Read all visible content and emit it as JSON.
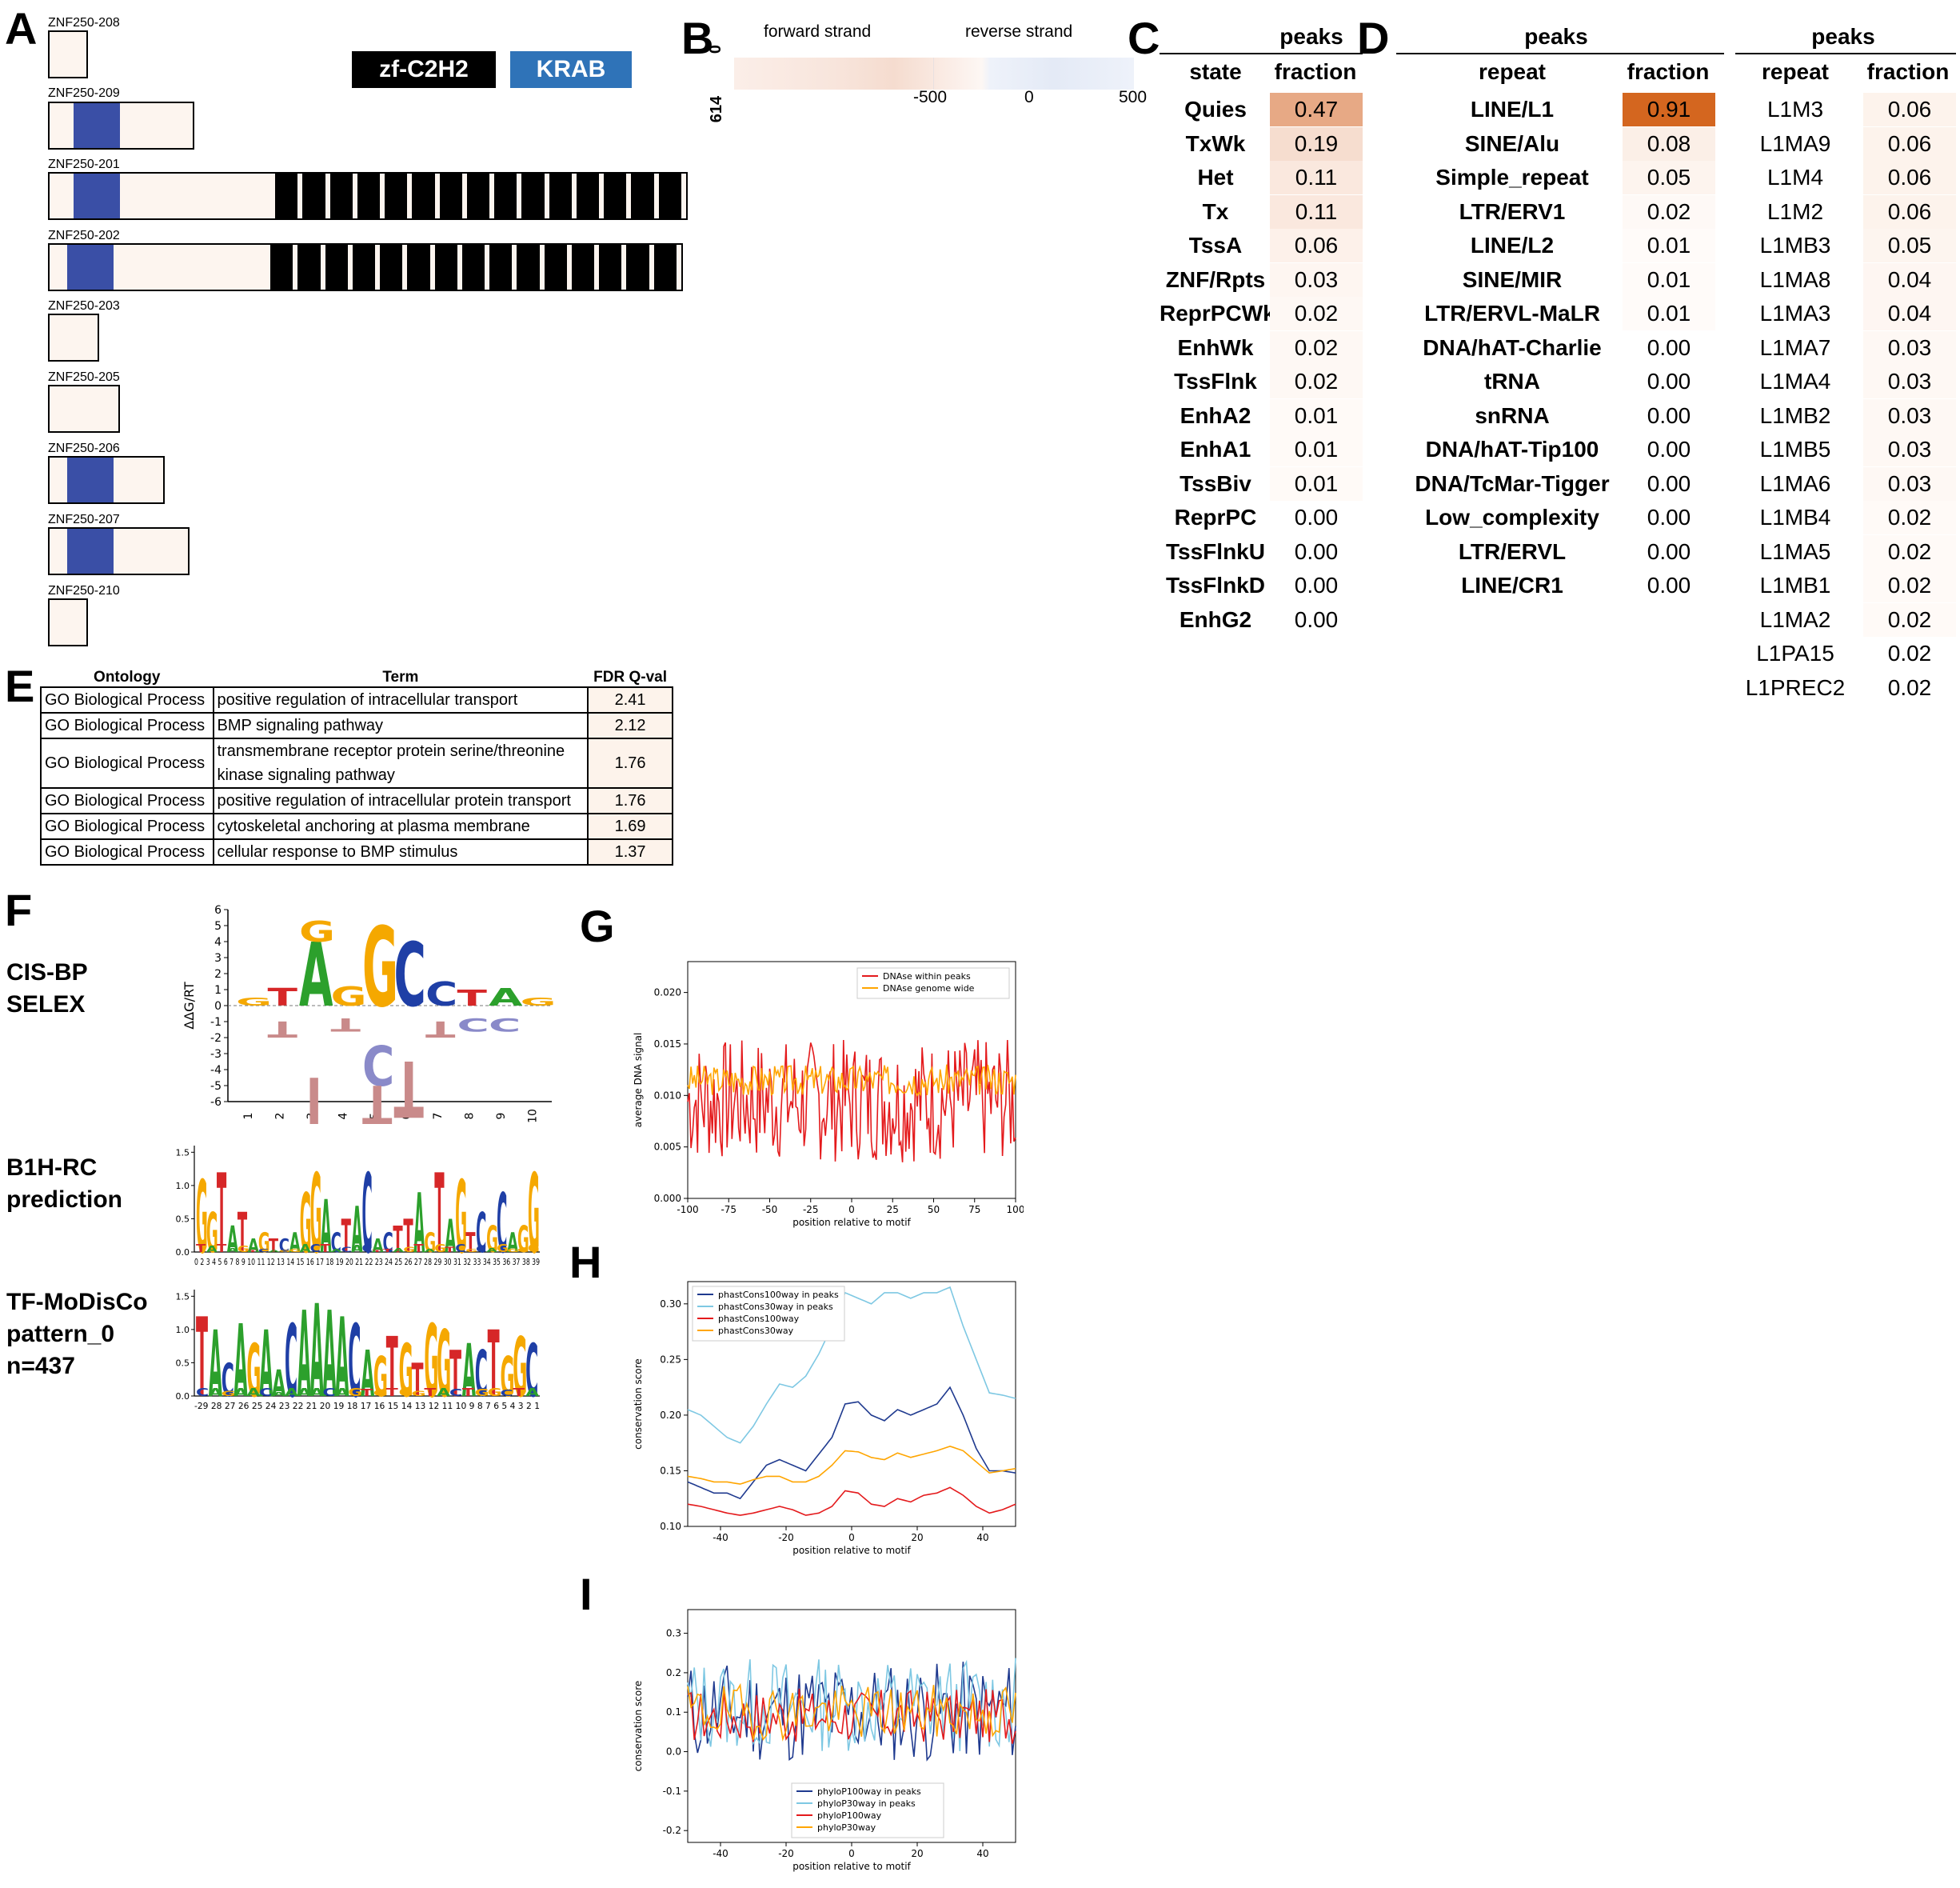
{
  "panels": {
    "a": "A",
    "b": "B",
    "c": "C",
    "d": "D",
    "e": "E",
    "f": "F",
    "g": "G",
    "h": "H",
    "i": "I"
  },
  "panel_a": {
    "legend": {
      "zf": "zf-C2H2",
      "krab": "KRAB"
    },
    "isoforms": [
      "ZNF250-208",
      "ZNF250-209",
      "ZNF250-201",
      "ZNF250-202",
      "ZNF250-203",
      "ZNF250-205",
      "ZNF250-206",
      "ZNF250-207",
      "ZNF250-210"
    ],
    "colors": {
      "krab": "#3a4fa6",
      "zf": "#000000",
      "box_fill": "#fdf5ef",
      "legend_krab": "#2f73b8"
    }
  },
  "panel_b": {
    "forward_label": "forward strand",
    "reverse_label": "reverse strand",
    "y_top": "0",
    "y_bottom": "614",
    "x_ticks": [
      "-500",
      "0",
      "500"
    ]
  },
  "panel_c": {
    "header": "peaks",
    "col1": "state",
    "col2": "fraction",
    "rows": [
      {
        "name": "Quies",
        "value": "0.47",
        "heat": "#e7a985"
      },
      {
        "name": "TxWk",
        "value": "0.19",
        "heat": "#f6ddcf"
      },
      {
        "name": "Het",
        "value": "0.11",
        "heat": "#fae8de"
      },
      {
        "name": "Tx",
        "value": "0.11",
        "heat": "#fae8de"
      },
      {
        "name": "TssA",
        "value": "0.06",
        "heat": "#fdf1ea"
      },
      {
        "name": "ZNF/Rpts",
        "value": "0.03",
        "heat": "#fef6f1"
      },
      {
        "name": "ReprPCWk",
        "value": "0.02",
        "heat": "#fef8f4"
      },
      {
        "name": "EnhWk",
        "value": "0.02",
        "heat": "#fef8f4"
      },
      {
        "name": "TssFlnk",
        "value": "0.02",
        "heat": "#fef8f4"
      },
      {
        "name": "EnhA2",
        "value": "0.01",
        "heat": "#fffaf7"
      },
      {
        "name": "EnhA1",
        "value": "0.01",
        "heat": "#fffaf7"
      },
      {
        "name": "TssBiv",
        "value": "0.01",
        "heat": "#fffaf7"
      },
      {
        "name": "ReprPC",
        "value": "0.00",
        "heat": "#ffffff"
      },
      {
        "name": "TssFlnkU",
        "value": "0.00",
        "heat": "#ffffff"
      },
      {
        "name": "TssFlnkD",
        "value": "0.00",
        "heat": "#ffffff"
      },
      {
        "name": "EnhG2",
        "value": "0.00",
        "heat": "#ffffff"
      }
    ]
  },
  "panel_d": {
    "header": "peaks",
    "col1": "repeat",
    "col2": "fraction",
    "rows": [
      {
        "name": "LINE/L1",
        "value": "0.91",
        "heat": "#d4661f"
      },
      {
        "name": "SINE/Alu",
        "value": "0.08",
        "heat": "#fbefe7"
      },
      {
        "name": "Simple_repeat",
        "value": "0.05",
        "heat": "#fdf4ee"
      },
      {
        "name": "LTR/ERV1",
        "value": "0.02",
        "heat": "#fef9f6"
      },
      {
        "name": "LINE/L2",
        "value": "0.01",
        "heat": "#fffbf9"
      },
      {
        "name": "SINE/MIR",
        "value": "0.01",
        "heat": "#fffbf9"
      },
      {
        "name": "LTR/ERVL-MaLR",
        "value": "0.01",
        "heat": "#fffbf9"
      },
      {
        "name": "DNA/hAT-Charlie",
        "value": "0.00",
        "heat": "#ffffff"
      },
      {
        "name": "tRNA",
        "value": "0.00",
        "heat": "#ffffff"
      },
      {
        "name": "snRNA",
        "value": "0.00",
        "heat": "#ffffff"
      },
      {
        "name": "DNA/hAT-Tip100",
        "value": "0.00",
        "heat": "#ffffff"
      },
      {
        "name": "DNA/TcMar-Tigger",
        "value": "0.00",
        "heat": "#ffffff"
      },
      {
        "name": "Low_complexity",
        "value": "0.00",
        "heat": "#ffffff"
      },
      {
        "name": "LTR/ERVL",
        "value": "0.00",
        "heat": "#ffffff"
      },
      {
        "name": "LINE/CR1",
        "value": "0.00",
        "heat": "#ffffff"
      }
    ]
  },
  "panel_d2": {
    "header": "peaks",
    "col1": "repeat",
    "col2": "fraction",
    "rows": [
      {
        "name": "L1M3",
        "value": "0.06",
        "heat": "#fdf3ec"
      },
      {
        "name": "L1MA9",
        "value": "0.06",
        "heat": "#fdf3ec"
      },
      {
        "name": "L1M4",
        "value": "0.06",
        "heat": "#fdf3ec"
      },
      {
        "name": "L1M2",
        "value": "0.06",
        "heat": "#fdf3ec"
      },
      {
        "name": "L1MB3",
        "value": "0.05",
        "heat": "#fdf5ef"
      },
      {
        "name": "L1MA8",
        "value": "0.04",
        "heat": "#fef6f2"
      },
      {
        "name": "L1MA3",
        "value": "0.04",
        "heat": "#fef6f2"
      },
      {
        "name": "L1MA7",
        "value": "0.03",
        "heat": "#fef8f4"
      },
      {
        "name": "L1MA4",
        "value": "0.03",
        "heat": "#fef8f4"
      },
      {
        "name": "L1MB2",
        "value": "0.03",
        "heat": "#fef8f4"
      },
      {
        "name": "L1MB5",
        "value": "0.03",
        "heat": "#fef8f4"
      },
      {
        "name": "L1MA6",
        "value": "0.03",
        "heat": "#fef8f4"
      },
      {
        "name": "L1MB4",
        "value": "0.02",
        "heat": "#fffaf7"
      },
      {
        "name": "L1MA5",
        "value": "0.02",
        "heat": "#fffaf7"
      },
      {
        "name": "L1MB1",
        "value": "0.02",
        "heat": "#fffaf7"
      },
      {
        "name": "L1MA2",
        "value": "0.02",
        "heat": "#fffaf7"
      },
      {
        "name": "L1PA15",
        "value": "0.02",
        "heat": "#ffffff"
      },
      {
        "name": "L1PREC2",
        "value": "0.02",
        "heat": "#ffffff"
      }
    ]
  },
  "panel_e": {
    "headers": {
      "ontology": "Ontology",
      "term": "Term",
      "fdr": "FDR Q-val"
    },
    "rows": [
      {
        "ontology": "GO Biological Process",
        "term": "positive regulation of intracellular transport",
        "fdr": "2.41"
      },
      {
        "ontology": "GO Biological Process",
        "term": "BMP signaling pathway",
        "fdr": "2.12"
      },
      {
        "ontology": "GO Biological Process",
        "term": "transmembrane receptor protein serine/threonine kinase signaling pathway",
        "fdr": "1.76"
      },
      {
        "ontology": "GO Biological Process",
        "term": "positive regulation of intracellular protein transport",
        "fdr": "1.76"
      },
      {
        "ontology": "GO Biological Process",
        "term": "cytoskeletal anchoring at plasma membrane",
        "fdr": "1.69"
      },
      {
        "ontology": "GO Biological Process",
        "term": "cellular response to BMP stimulus",
        "fdr": "1.37"
      }
    ]
  },
  "panel_f": {
    "labels": {
      "cisbp": "CIS-BP\nSELEX",
      "b1h": "B1H-RC\nprediction",
      "modisco": "TF-MoDisCo\npattern_0\nn=437"
    },
    "selex_ylabel": "ΔΔG/RT",
    "selex_yticks": [
      "6",
      "5",
      "4",
      "3",
      "2",
      "1",
      "0",
      "-1",
      "-2",
      "-3",
      "-4",
      "-5",
      "-6"
    ],
    "selex_xticks": [
      "1",
      "2",
      "3",
      "4",
      "5",
      "6",
      "7",
      "8",
      "9",
      "10"
    ],
    "selex_top": [
      {
        "pos": 1,
        "letter": "G",
        "h": 0.5,
        "color": "#f5a800"
      },
      {
        "pos": 2,
        "letter": "T",
        "h": 1.1,
        "color": "#d62728"
      },
      {
        "pos": 3,
        "letter": "A",
        "h": 4.0,
        "color": "#2ca02c"
      },
      {
        "pos": 3,
        "letter": "G",
        "h": 1.3,
        "color": "#f5a800"
      },
      {
        "pos": 4,
        "letter": "G",
        "h": 1.2,
        "color": "#f5a800"
      },
      {
        "pos": 5,
        "letter": "G",
        "h": 5.0,
        "color": "#f5a800"
      },
      {
        "pos": 6,
        "letter": "C",
        "h": 4.0,
        "color": "#1f3fa6"
      },
      {
        "pos": 7,
        "letter": "C",
        "h": 1.5,
        "color": "#1f3fa6"
      },
      {
        "pos": 8,
        "letter": "T",
        "h": 1.0,
        "color": "#d62728"
      },
      {
        "pos": 9,
        "letter": "A",
        "h": 1.1,
        "color": "#2ca02c"
      },
      {
        "pos": 10,
        "letter": "G",
        "h": 0.5,
        "color": "#f5a800"
      }
    ],
    "selex_bottom": [
      {
        "pos": 2,
        "letter": "T",
        "h": 1.0,
        "color": "#c98a8a"
      },
      {
        "pos": 3,
        "letter": "T",
        "h": 4.5,
        "color": "#c98a8a"
      },
      {
        "pos": 4,
        "letter": "T",
        "h": 0.8,
        "color": "#c98a8a"
      },
      {
        "pos": 5,
        "letter": "C",
        "h": 2.5,
        "color": "#8a8ac9"
      },
      {
        "pos": 5,
        "letter": "T",
        "h": 2.5,
        "color": "#c98a8a"
      },
      {
        "pos": 6,
        "letter": "T",
        "h": 3.5,
        "color": "#c98a8a"
      },
      {
        "pos": 7,
        "letter": "T",
        "h": 1.0,
        "color": "#c98a8a"
      },
      {
        "pos": 8,
        "letter": "C",
        "h": 0.8,
        "color": "#8a8ac9"
      },
      {
        "pos": 9,
        "letter": "C",
        "h": 0.8,
        "color": "#8a8ac9"
      }
    ],
    "b1h_yticks": [
      "1.5",
      "1.0",
      "0.5",
      "0.0"
    ],
    "b1h_seq": "GGTATAGTCAGGACTACACTTAGTAGTCGCAGG",
    "b1h_heights": [
      1.1,
      0.6,
      1.2,
      0.4,
      0.6,
      0.2,
      0.3,
      0.2,
      0.2,
      0.3,
      0.9,
      1.2,
      0.8,
      0.3,
      0.5,
      0.7,
      1.2,
      0.2,
      0.3,
      0.4,
      0.5,
      0.9,
      0.3,
      1.2,
      0.5,
      1.1,
      0.3,
      0.6,
      0.4,
      0.9,
      0.3,
      0.4,
      1.2
    ],
    "b1h_xticks": "0 2 3 4 5 6 7 8 9 10 11 12 13 14 15 16 17 18 19 20 21 22 23 24 25 26 27 28 29 30 31 32 33 34 35 36 37 38 39",
    "modisco_yticks": [
      "1.5",
      "1.0",
      "0.5",
      "0.0"
    ],
    "modisco_seq": "TACAGAACAAAACAGTGTGGTACTGGC",
    "modisco_heights": [
      1.2,
      1.0,
      0.5,
      1.1,
      0.8,
      1.0,
      0.4,
      1.1,
      1.3,
      1.4,
      1.3,
      1.2,
      1.1,
      0.7,
      0.6,
      0.9,
      0.8,
      0.5,
      1.1,
      1.0,
      0.7,
      0.8,
      0.7,
      1.0,
      0.6,
      0.9,
      0.8
    ],
    "modisco_xticks": "-29 28 27 26 25 24 23 22 21 20 19 18 17 16 15 14 13 12 11 10 9 8 7 6 5 4 3 2 1"
  },
  "chart_data": [
    {
      "type": "line",
      "title": "",
      "xlabel": "position relative to motif",
      "ylabel": "average DNA signal",
      "xlim": [
        -100,
        100
      ],
      "ylim": [
        0.0,
        0.023
      ],
      "xticks": [
        "-100",
        "-75",
        "-50",
        "-25",
        "0",
        "25",
        "50",
        "75",
        "100"
      ],
      "yticks": [
        "0.000",
        "0.005",
        "0.010",
        "0.015",
        "0.020"
      ],
      "legend": "top-right",
      "series": [
        {
          "name": "DNAse within peaks",
          "color": "#e41a1c",
          "seed": 7,
          "mean": 0.0095,
          "amp": 0.006
        },
        {
          "name": "DNAse genome wide",
          "color": "#ffa500",
          "seed": 3,
          "mean": 0.0115,
          "amp": 0.0015
        }
      ]
    },
    {
      "type": "line",
      "title": "",
      "xlabel": "position relative to motif",
      "ylabel": "conservation score",
      "xlim": [
        -50,
        50
      ],
      "ylim": [
        0.1,
        0.32
      ],
      "xticks": [
        "-40",
        "-20",
        "0",
        "20",
        "40"
      ],
      "yticks": [
        "0.10",
        "0.15",
        "0.20",
        "0.25",
        "0.30"
      ],
      "legend": "top-left",
      "x": [
        -50,
        -46,
        -42,
        -38,
        -34,
        -30,
        -26,
        -22,
        -18,
        -14,
        -10,
        -6,
        -2,
        2,
        6,
        10,
        14,
        18,
        22,
        26,
        30,
        34,
        38,
        42,
        46,
        50
      ],
      "series": [
        {
          "name": "phastCons100way in peaks",
          "color": "#1f3a8f",
          "values": [
            0.14,
            0.135,
            0.13,
            0.13,
            0.125,
            0.14,
            0.155,
            0.16,
            0.155,
            0.15,
            0.165,
            0.18,
            0.21,
            0.212,
            0.2,
            0.195,
            0.205,
            0.2,
            0.205,
            0.21,
            0.225,
            0.2,
            0.17,
            0.15,
            0.15,
            0.148
          ]
        },
        {
          "name": "phastCons30way in peaks",
          "color": "#7ec8e3",
          "values": [
            0.205,
            0.2,
            0.19,
            0.18,
            0.175,
            0.19,
            0.21,
            0.228,
            0.225,
            0.235,
            0.255,
            0.28,
            0.31,
            0.305,
            0.3,
            0.31,
            0.31,
            0.305,
            0.31,
            0.31,
            0.315,
            0.28,
            0.25,
            0.22,
            0.218,
            0.215
          ]
        },
        {
          "name": "phastCons100way",
          "color": "#e41a1c",
          "values": [
            0.12,
            0.118,
            0.115,
            0.112,
            0.11,
            0.112,
            0.115,
            0.118,
            0.115,
            0.11,
            0.112,
            0.118,
            0.132,
            0.13,
            0.12,
            0.118,
            0.125,
            0.122,
            0.128,
            0.13,
            0.135,
            0.128,
            0.118,
            0.112,
            0.115,
            0.12
          ]
        },
        {
          "name": "phastCons30way",
          "color": "#ffa500",
          "values": [
            0.145,
            0.143,
            0.14,
            0.14,
            0.138,
            0.142,
            0.145,
            0.145,
            0.14,
            0.14,
            0.145,
            0.155,
            0.168,
            0.167,
            0.162,
            0.16,
            0.166,
            0.162,
            0.165,
            0.168,
            0.172,
            0.168,
            0.158,
            0.148,
            0.15,
            0.152
          ]
        }
      ]
    },
    {
      "type": "line",
      "title": "",
      "xlabel": "position relative to motif",
      "ylabel": "conservation score",
      "xlim": [
        -50,
        50
      ],
      "ylim": [
        -0.23,
        0.36
      ],
      "xticks": [
        "-40",
        "-20",
        "0",
        "20",
        "40"
      ],
      "yticks": [
        "-0.2",
        "-0.1",
        "0.0",
        "0.1",
        "0.2",
        "0.3"
      ],
      "legend": "bottom-center",
      "series": [
        {
          "name": "phyloP100way in peaks",
          "color": "#1f3a8f",
          "seed": 11,
          "mean": 0.1,
          "amp": 0.13
        },
        {
          "name": "phyloP30way in peaks",
          "color": "#7ec8e3",
          "seed": 13,
          "mean": 0.12,
          "amp": 0.12
        },
        {
          "name": "phyloP100way",
          "color": "#e41a1c",
          "seed": 17,
          "mean": 0.09,
          "amp": 0.07
        },
        {
          "name": "phyloP30way",
          "color": "#ffa500",
          "seed": 19,
          "mean": 0.1,
          "amp": 0.07
        }
      ]
    }
  ]
}
